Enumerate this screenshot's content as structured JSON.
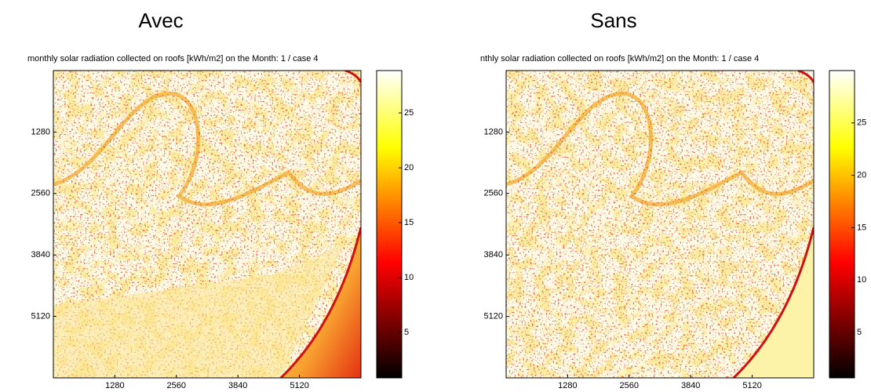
{
  "chart_data": [
    {
      "type": "heatmap",
      "title": "Avec",
      "subtitle": "monthly solar radiation collected on roofs [kWh/m2] on the Month: 1  / case 4",
      "colormap": "hot",
      "xlim": [
        0,
        6400
      ],
      "ylim": [
        0,
        6400
      ],
      "y_reversed": true,
      "xticks": [
        1280,
        2560,
        3840,
        5120
      ],
      "yticks": [
        1280,
        2560,
        3840,
        5120
      ],
      "clim": [
        0.86,
        28.86
      ],
      "cticks": [
        5,
        10,
        15,
        20,
        25
      ]
    },
    {
      "type": "heatmap",
      "title": "Sans",
      "subtitle": "nthly solar radiation collected on roofs [kWh/m2] on the Month: 1  / case 4",
      "colormap": "hot",
      "xlim": [
        0,
        6400
      ],
      "ylim": [
        0,
        6400
      ],
      "y_reversed": true,
      "xticks": [
        1280,
        2560,
        3840,
        5120
      ],
      "yticks": [
        1280,
        2560,
        3840,
        5120
      ],
      "clim": [
        0.66,
        30.0
      ],
      "cticks": [
        5,
        10,
        15,
        20,
        25
      ]
    }
  ]
}
